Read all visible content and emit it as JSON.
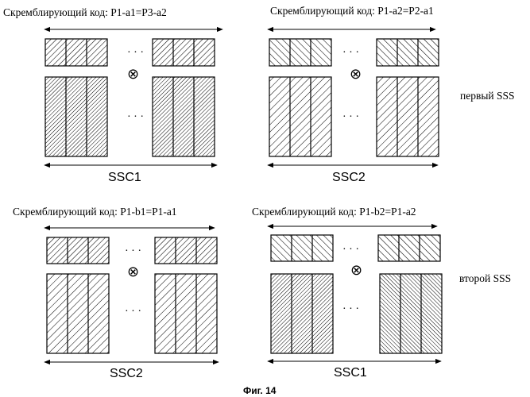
{
  "figure": {
    "caption": "Фиг. 14"
  },
  "side_labels": {
    "first": "первый SSS",
    "second": "второй SSS"
  },
  "panels": [
    {
      "scrambling_label": "Скремблирующий код: P1-a1=P3-a2",
      "ssc_label": "SSC1"
    },
    {
      "scrambling_label": "Скремблирующий код: P1-a2=P2-a1",
      "ssc_label": "SSC2"
    },
    {
      "scrambling_label": "Скремблирующий код: P1-b1=P1-a1",
      "ssc_label": "SSC2"
    },
    {
      "scrambling_label": "Скремблирующий код: P1-b2=P1-a2",
      "ssc_label": "SSC1"
    }
  ],
  "symbols": {
    "dots": "· · ·",
    "multiply": "⊗"
  }
}
